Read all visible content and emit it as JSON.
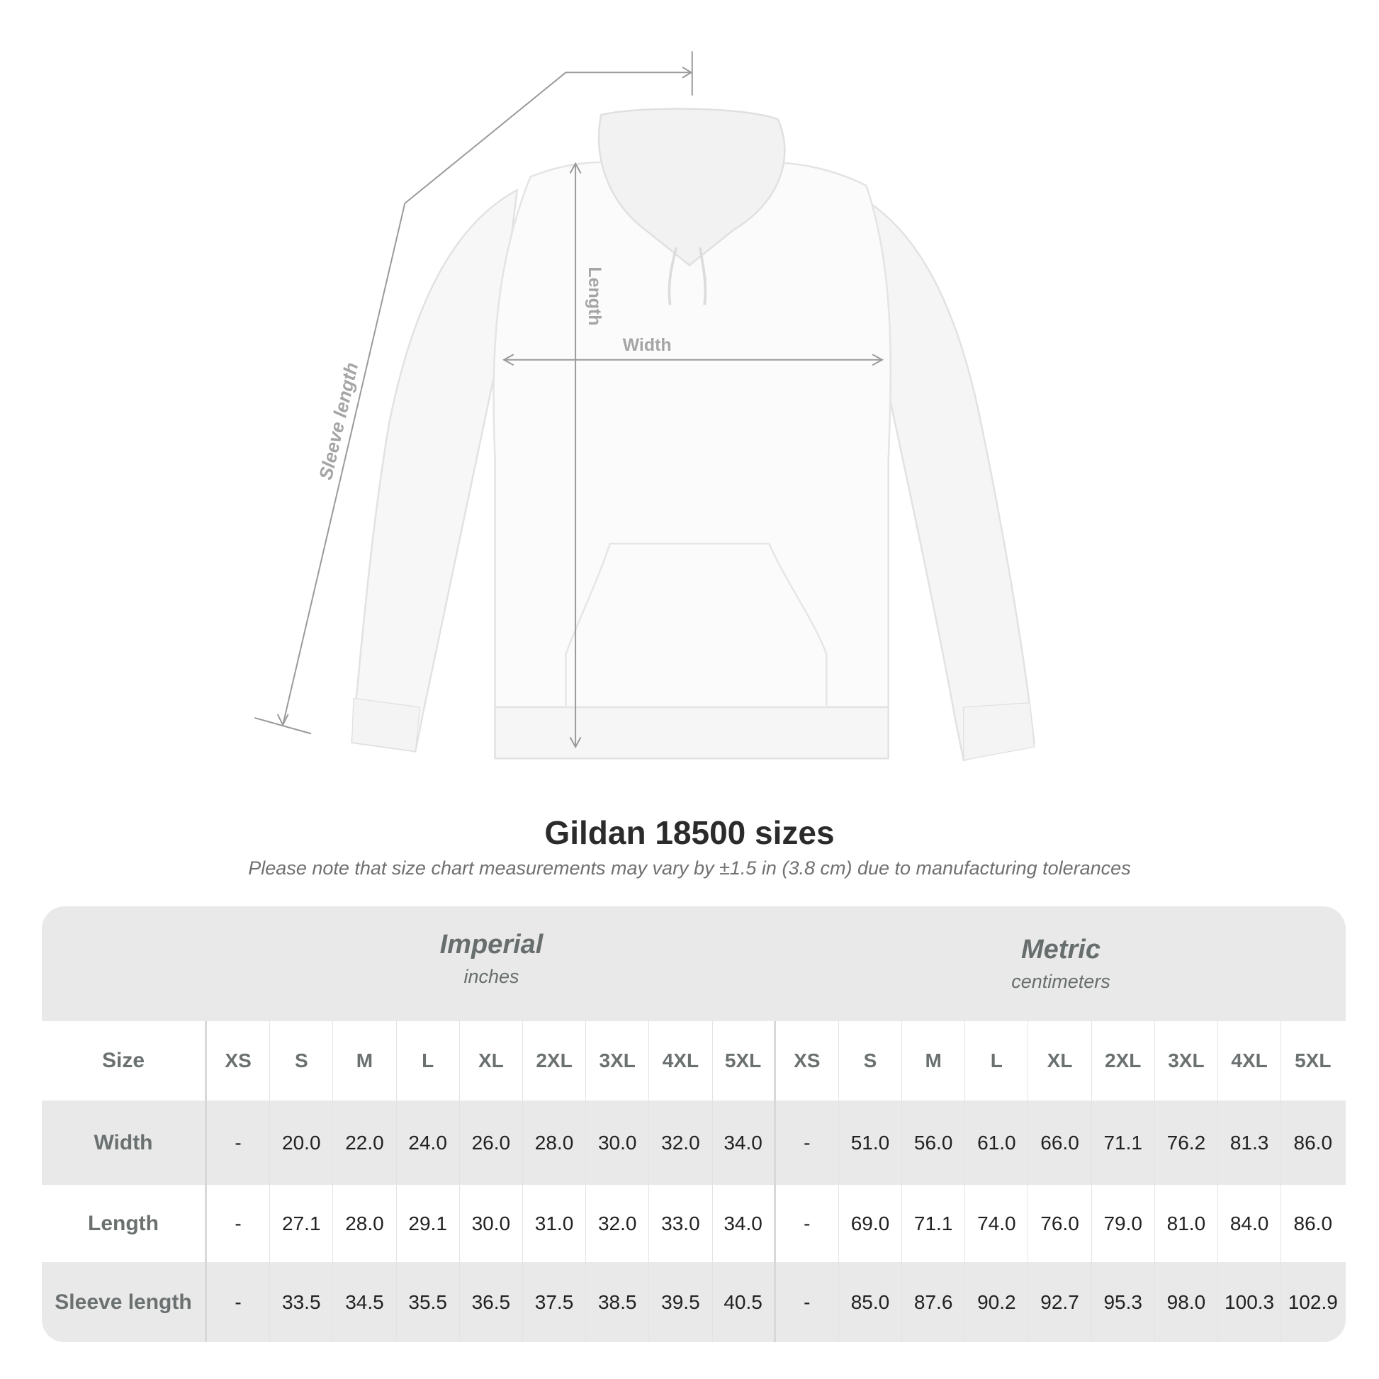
{
  "diagram": {
    "labels": {
      "sleeve": "Sleeve length",
      "length": "Length",
      "width": "Width"
    }
  },
  "title": "Gildan 18500 sizes",
  "note": "Please note that size chart measurements may vary by ±1.5 in (3.8 cm) due to manufacturing tolerances",
  "table": {
    "imperial": {
      "title": "Imperial",
      "unit": "inches"
    },
    "metric": {
      "title": "Metric",
      "unit": "centimeters"
    },
    "size_label": "Size",
    "sizes": [
      "XS",
      "S",
      "M",
      "L",
      "XL",
      "2XL",
      "3XL",
      "4XL",
      "5XL"
    ],
    "rows": [
      {
        "label": "Width",
        "imperial": [
          "-",
          "20.0",
          "22.0",
          "24.0",
          "26.0",
          "28.0",
          "30.0",
          "32.0",
          "34.0"
        ],
        "metric": [
          "-",
          "51.0",
          "56.0",
          "61.0",
          "66.0",
          "71.1",
          "76.2",
          "81.3",
          "86.0"
        ]
      },
      {
        "label": "Length",
        "imperial": [
          "-",
          "27.1",
          "28.0",
          "29.1",
          "30.0",
          "31.0",
          "32.0",
          "33.0",
          "34.0"
        ],
        "metric": [
          "-",
          "69.0",
          "71.1",
          "74.0",
          "76.0",
          "79.0",
          "81.0",
          "84.0",
          "86.0"
        ]
      },
      {
        "label": "Sleeve length",
        "imperial": [
          "-",
          "33.5",
          "34.5",
          "35.5",
          "36.5",
          "37.5",
          "38.5",
          "39.5",
          "40.5"
        ],
        "metric": [
          "-",
          "85.0",
          "87.6",
          "90.2",
          "92.7",
          "95.3",
          "98.0",
          "100.3",
          "102.9"
        ]
      }
    ],
    "colors": {
      "band": "#e9e9e9",
      "label": "#6b7070"
    }
  }
}
